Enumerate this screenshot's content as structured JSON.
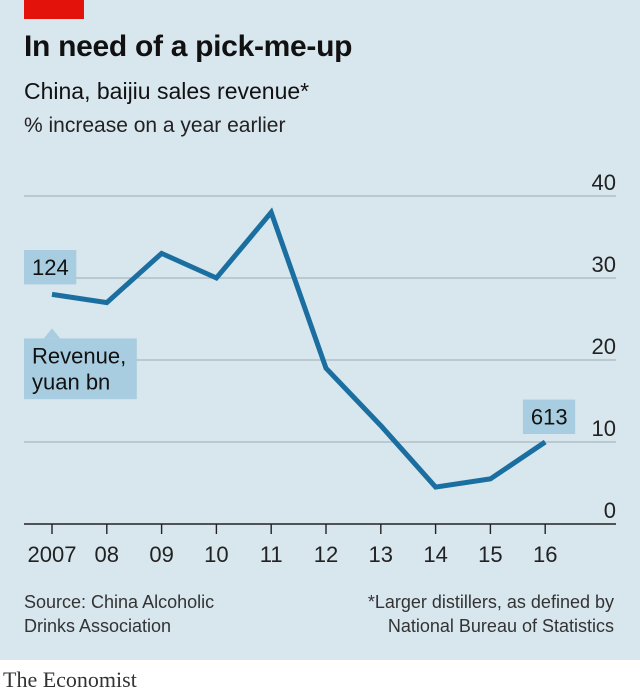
{
  "header": {
    "title": "In need of a pick-me-up",
    "subtitle": "China, baijiu sales revenue*",
    "unit": "% increase on a year earlier"
  },
  "chart_data": {
    "type": "line",
    "x": [
      "2007",
      "08",
      "09",
      "10",
      "11",
      "12",
      "13",
      "14",
      "15",
      "16"
    ],
    "series": [
      {
        "values": [
          28,
          27,
          33,
          30,
          38,
          19,
          12,
          4.5,
          5.5,
          10
        ]
      }
    ],
    "ylim": [
      0,
      40
    ],
    "yticks": [
      "0",
      "10",
      "20",
      "30",
      "40"
    ],
    "grid": true,
    "y_axis_side": "right",
    "line_color": "#1a6fa0",
    "annotations": [
      {
        "text": "124",
        "series_index": 0,
        "x_index": 0
      },
      {
        "text": "Revenue,\nyuan bn",
        "series_index": 0,
        "x_index": 0
      },
      {
        "text": "613",
        "series_index": 0,
        "x_index": 9
      }
    ]
  },
  "footer": {
    "source": "Source: China Alcoholic\nDrinks Association",
    "footnote": "*Larger distillers, as defined by\nNational Bureau of Statistics",
    "brand": "The Economist"
  }
}
